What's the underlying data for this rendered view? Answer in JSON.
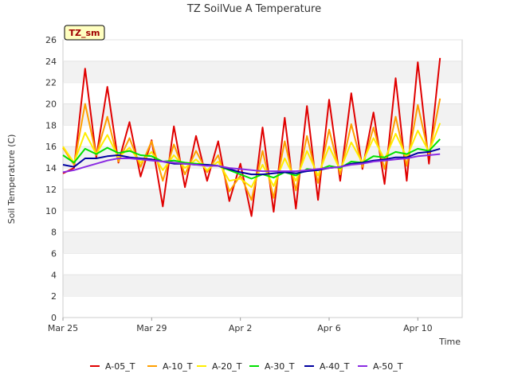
{
  "chart_data": {
    "type": "line",
    "title": "TZ SoilVue A Temperature",
    "xlabel": "Time",
    "ylabel": "Soil Temperature (C)",
    "badge": "TZ_sm",
    "ylim": [
      0,
      26
    ],
    "yticks": [
      0,
      2,
      4,
      6,
      8,
      10,
      12,
      14,
      16,
      18,
      20,
      22,
      24,
      26
    ],
    "xlim": [
      "2025-03-25",
      "2025-04-12"
    ],
    "xticks": [
      {
        "value": "2025-03-25",
        "label": "Mar 25"
      },
      {
        "value": "2025-03-29",
        "label": "Mar 29"
      },
      {
        "value": "2025-04-02",
        "label": "Apr 2"
      },
      {
        "value": "2025-04-06",
        "label": "Apr 6"
      },
      {
        "value": "2025-04-10",
        "label": "Apr 10"
      }
    ],
    "x": [
      "2025-03-25",
      "2025-03-25 12:00",
      "2025-03-26",
      "2025-03-26 12:00",
      "2025-03-27",
      "2025-03-27 12:00",
      "2025-03-28",
      "2025-03-28 12:00",
      "2025-03-29",
      "2025-03-29 12:00",
      "2025-03-30",
      "2025-03-30 12:00",
      "2025-03-31",
      "2025-03-31 12:00",
      "2025-04-01",
      "2025-04-01 12:00",
      "2025-04-02",
      "2025-04-02 12:00",
      "2025-04-03",
      "2025-04-03 12:00",
      "2025-04-04",
      "2025-04-04 12:00",
      "2025-04-05",
      "2025-04-05 12:00",
      "2025-04-06",
      "2025-04-06 12:00",
      "2025-04-07",
      "2025-04-07 12:00",
      "2025-04-08",
      "2025-04-08 12:00",
      "2025-04-09",
      "2025-04-09 12:00",
      "2025-04-10",
      "2025-04-10 12:00",
      "2025-04-11"
    ],
    "grid": "horizontal-bands",
    "legend_position": "bottom",
    "series": [
      {
        "name": "A-05_T",
        "color": "#e00000",
        "values": [
          13.5,
          14.0,
          23.3,
          15.0,
          21.6,
          14.5,
          18.3,
          13.2,
          16.6,
          10.4,
          17.9,
          12.2,
          17.0,
          12.8,
          16.5,
          10.9,
          14.4,
          9.5,
          17.8,
          9.9,
          18.7,
          10.2,
          19.8,
          11.0,
          20.4,
          12.8,
          21.0,
          13.9,
          19.2,
          12.5,
          22.4,
          12.8,
          23.9,
          14.4,
          24.3
        ]
      },
      {
        "name": "A-10_T",
        "color": "#ff9f00",
        "values": [
          15.9,
          14.3,
          20.0,
          15.2,
          18.8,
          14.6,
          16.8,
          14.1,
          16.5,
          12.8,
          16.2,
          13.4,
          15.6,
          13.6,
          15.2,
          11.8,
          13.3,
          11.0,
          15.6,
          11.2,
          16.5,
          11.9,
          17.0,
          12.6,
          17.6,
          13.4,
          18.1,
          14.1,
          17.8,
          13.9,
          18.8,
          14.2,
          19.9,
          15.2,
          20.5
        ]
      },
      {
        "name": "A-20_T",
        "color": "#ffee00",
        "values": [
          16.0,
          14.5,
          17.3,
          15.3,
          17.1,
          15.0,
          15.9,
          14.5,
          15.5,
          13.8,
          15.2,
          14.0,
          14.8,
          13.8,
          14.6,
          12.8,
          13.0,
          12.2,
          14.3,
          12.3,
          14.9,
          12.8,
          15.6,
          13.3,
          16.0,
          13.8,
          16.4,
          14.5,
          16.8,
          14.8,
          17.2,
          15.0,
          17.5,
          15.5,
          18.2
        ]
      },
      {
        "name": "A-30_T",
        "color": "#00e000",
        "values": [
          15.2,
          14.5,
          15.8,
          15.3,
          15.9,
          15.4,
          15.6,
          15.2,
          15.1,
          14.6,
          14.7,
          14.5,
          14.4,
          14.3,
          14.2,
          13.8,
          13.4,
          13.0,
          13.4,
          13.1,
          13.6,
          13.3,
          13.9,
          13.8,
          14.2,
          14.0,
          14.6,
          14.5,
          15.1,
          15.0,
          15.5,
          15.3,
          15.8,
          15.6,
          16.7
        ]
      },
      {
        "name": "A-40_T",
        "color": "#0000a0",
        "values": [
          14.3,
          14.1,
          14.9,
          14.9,
          15.1,
          15.2,
          15.0,
          14.9,
          14.8,
          14.6,
          14.4,
          14.4,
          14.3,
          14.3,
          14.2,
          13.9,
          13.6,
          13.4,
          13.4,
          13.5,
          13.6,
          13.5,
          13.7,
          13.8,
          14.0,
          14.1,
          14.4,
          14.5,
          14.7,
          14.8,
          15.0,
          15.0,
          15.4,
          15.5,
          15.8
        ]
      },
      {
        "name": "A-50_T",
        "color": "#8a2be2",
        "values": [
          13.6,
          13.8,
          14.1,
          14.4,
          14.7,
          14.9,
          14.9,
          14.8,
          14.7,
          14.6,
          14.5,
          14.4,
          14.3,
          14.2,
          14.2,
          14.0,
          13.9,
          13.8,
          13.7,
          13.7,
          13.7,
          13.7,
          13.8,
          13.9,
          14.0,
          14.1,
          14.3,
          14.4,
          14.6,
          14.7,
          14.8,
          14.9,
          15.1,
          15.2,
          15.3
        ]
      }
    ]
  }
}
